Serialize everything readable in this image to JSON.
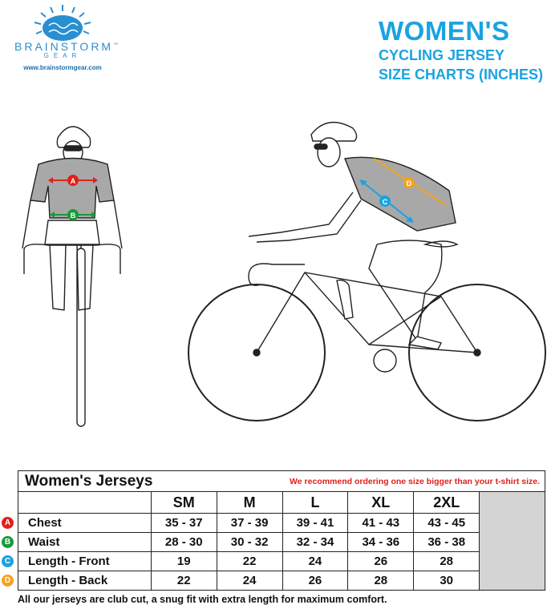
{
  "logo": {
    "brand": "BRAINSTORM",
    "tm": "™",
    "sub": "GEAR",
    "url": "www.brainstormgear.com"
  },
  "title": {
    "line1": "WOMEN'S",
    "line2": "CYCLING JERSEY",
    "line3": "SIZE CHARTS (INCHES)"
  },
  "illustration": {
    "front_labels": [
      "A",
      "B"
    ],
    "side_labels": [
      "C",
      "D"
    ]
  },
  "table": {
    "title": "Women's Jerseys",
    "note": "We recommend ordering one size bigger than your t-shirt size.",
    "sizes": [
      "SM",
      "M",
      "L",
      "XL",
      "2XL"
    ],
    "rows": [
      {
        "marker": "A",
        "color": "#e0201b",
        "label": "Chest",
        "values": [
          "35 - 37",
          "37 - 39",
          "39 - 41",
          "41 - 43",
          "43 - 45"
        ]
      },
      {
        "marker": "B",
        "color": "#1a9a3a",
        "label": "Waist",
        "values": [
          "28 - 30",
          "30 - 32",
          "32 - 34",
          "34 - 36",
          "36 - 38"
        ]
      },
      {
        "marker": "C",
        "color": "#1aa3e0",
        "label": "Length - Front",
        "values": [
          "19",
          "22",
          "24",
          "26",
          "28"
        ]
      },
      {
        "marker": "D",
        "color": "#f2a321",
        "label": "Length - Back",
        "values": [
          "22",
          "24",
          "26",
          "28",
          "30"
        ]
      }
    ]
  },
  "footer": "All our jerseys are club cut, a snug fit with extra length for maximum comfort.",
  "colors": {
    "accent": "#1aa3e0",
    "note": "#e0201b",
    "jersey": "#a8a8a8"
  }
}
